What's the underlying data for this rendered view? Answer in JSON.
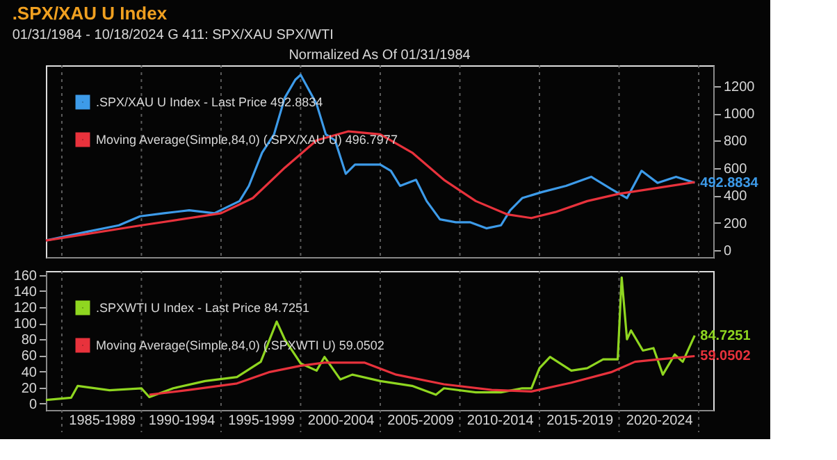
{
  "chart_data": [
    {
      "type": "line",
      "title": ".SPX/XAU U Index",
      "subtitle": "01/31/1984 - 10/18/2024",
      "annotations": [
        "G 411: SPX/XAU SPX/WTI",
        "Normalized As Of 01/31/1984",
        {
          "text": "492.8834",
          "x": "2024-10",
          "y": 492.8834
        }
      ],
      "xlim": [
        "1984-01",
        "2025-12"
      ],
      "ylim": [
        -50,
        1350
      ],
      "yticks": [
        0,
        200,
        400,
        600,
        800,
        1000,
        1200
      ],
      "xticks": [
        {
          "value": "1985-01",
          "label": null
        },
        {
          "value": "1990-01",
          "label": null
        },
        {
          "value": "1995-01",
          "label": null
        },
        {
          "value": "2000-01",
          "label": null
        },
        {
          "value": "2005-01",
          "label": null
        },
        {
          "value": "2010-01",
          "label": null
        },
        {
          "value": "2015-01",
          "label": null
        },
        {
          "value": "2020-01",
          "label": null
        },
        {
          "value": "2025-01",
          "label": null
        }
      ],
      "tick_labels": "y",
      "grid": "x",
      "legend": "top left",
      "series": [
        {
          "name": ".SPX/XAU U Index - Last Price     492.8834",
          "color": "#3d9be9",
          "x": [
            "1984-01",
            "1986-09",
            "1988-08",
            "1989-12",
            "1991-06",
            "1993-01",
            "1994-08",
            "1996-03",
            "1996-10",
            "1997-08",
            "1998-05",
            "1999-01",
            "1999-09",
            "2000-01",
            "2001-01",
            "2001-08",
            "2002-03",
            "2002-11",
            "2003-06",
            "2005-01",
            "2005-09",
            "2006-04",
            "2007-04",
            "2007-12",
            "2008-10",
            "2009-10",
            "2010-09",
            "2011-09",
            "2012-08",
            "2013-03",
            "2013-12",
            "2015-03",
            "2016-09",
            "2018-04",
            "2019-07",
            "2020-07",
            "2021-06",
            "2022-06",
            "2023-08",
            "2024-10"
          ],
          "values": [
            71,
            137,
            182,
            248,
            270,
            292,
            270,
            359,
            470,
            713,
            846,
            1112,
            1245,
            1280,
            1068,
            846,
            802,
            558,
            625,
            625,
            580,
            470,
            514,
            359,
            226,
            204,
            204,
            160,
            182,
            292,
            381,
            425,
            470,
            536,
            448,
            381,
            580,
            492,
            536,
            492.8834
          ]
        },
        {
          "name": "Moving Average(Simple,84,0) (.SPX/XAU U)     496.7977",
          "color": "#e8323c",
          "x": [
            "1984-01",
            "1990-01",
            "1995-01",
            "1997-01",
            "1999-01",
            "2001-01",
            "2003-01",
            "2005-01",
            "2007-01",
            "2009-01",
            "2011-01",
            "2013-01",
            "2014-07",
            "2016-01",
            "2018-01",
            "2020-01",
            "2022-01",
            "2024-10"
          ],
          "values": [
            71,
            182,
            270,
            381,
            602,
            802,
            868,
            846,
            713,
            514,
            359,
            261,
            235,
            279,
            359,
            412,
            448,
            496.7977
          ]
        }
      ]
    },
    {
      "type": "line",
      "annotations": [
        {
          "text": "84.7251",
          "x": "2024-10",
          "y": 84.7251
        },
        {
          "text": "59.0502",
          "x": "2024-10",
          "y": 59.0502
        }
      ],
      "xlim": [
        "1984-01",
        "2025-12"
      ],
      "ylim": [
        -8,
        165
      ],
      "yticks": [
        0,
        20,
        40,
        60,
        80,
        100,
        120,
        140,
        160
      ],
      "xticks": [
        {
          "value": "1985-01",
          "label": null
        },
        {
          "value": "1987-07",
          "label": "1985-1989"
        },
        {
          "value": "1990-01",
          "label": null
        },
        {
          "value": "1992-07",
          "label": "1990-1994"
        },
        {
          "value": "1995-01",
          "label": null
        },
        {
          "value": "1997-07",
          "label": "1995-1999"
        },
        {
          "value": "2000-01",
          "label": null
        },
        {
          "value": "2002-07",
          "label": "2000-2004"
        },
        {
          "value": "2005-01",
          "label": null
        },
        {
          "value": "2007-07",
          "label": "2005-2009"
        },
        {
          "value": "2010-01",
          "label": null
        },
        {
          "value": "2012-07",
          "label": "2010-2014"
        },
        {
          "value": "2015-01",
          "label": null
        },
        {
          "value": "2017-07",
          "label": "2015-2019"
        },
        {
          "value": "2020-01",
          "label": null
        },
        {
          "value": "2022-07",
          "label": "2020-2024"
        },
        {
          "value": "2025-01",
          "label": null
        }
      ],
      "grid": "x",
      "legend": "top left",
      "series": [
        {
          "name": ".SPXWTI U Index - Last Price     84.7251",
          "color": "#8fd620",
          "x": [
            "1984-01",
            "1985-08",
            "1986-01",
            "1988-01",
            "1990-01",
            "1990-07",
            "1992-01",
            "1994-01",
            "1996-01",
            "1997-07",
            "1998-07",
            "1999-01",
            "2000-01",
            "2001-01",
            "2001-07",
            "2002-07",
            "2003-04",
            "2005-01",
            "2007-01",
            "2008-07",
            "2009-01",
            "2011-01",
            "2012-08",
            "2013-12",
            "2014-07",
            "2015-01",
            "2015-09",
            "2017-01",
            "2018-01",
            "2019-01",
            "2019-12",
            "2020-03",
            "2020-07",
            "2020-10",
            "2021-07",
            "2022-03",
            "2022-10",
            "2023-07",
            "2024-01",
            "2024-10"
          ],
          "values": [
            4.4,
            7.2,
            22,
            16.6,
            19,
            8,
            19,
            28,
            33,
            52,
            102,
            80,
            50,
            41,
            58,
            30,
            36,
            28,
            22,
            11,
            19,
            14,
            14,
            19,
            19,
            44,
            58,
            41,
            44,
            55,
            55,
            157,
            80,
            91,
            66,
            69,
            36,
            61,
            52,
            84.7251
          ]
        },
        {
          "name": "Moving Average(Simple,84,0) (.SPXWTI U)     59.0502",
          "color": "#e8323c",
          "x": [
            "1990-07",
            "1993-01",
            "1996-01",
            "1998-01",
            "2000-01",
            "2001-07",
            "2004-01",
            "2006-01",
            "2009-01",
            "2012-01",
            "2014-07",
            "2017-01",
            "2019-07",
            "2021-01",
            "2022-07",
            "2024-10"
          ],
          "values": [
            11,
            17,
            25,
            39,
            47,
            51,
            51,
            36,
            24,
            17,
            15,
            26,
            39,
            52,
            55,
            59.0502
          ]
        }
      ]
    }
  ]
}
